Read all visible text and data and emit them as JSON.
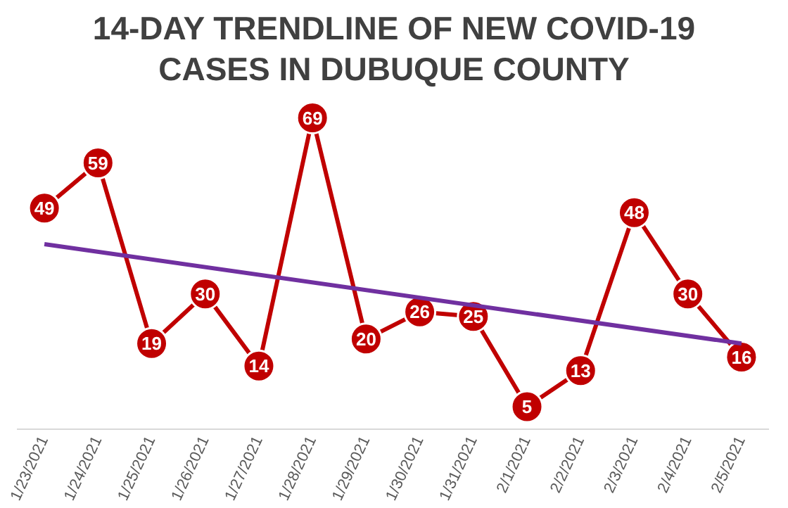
{
  "chart_data": {
    "type": "line",
    "title": "14-DAY TRENDLINE OF NEW COVID-19 CASES IN DUBUQUE COUNTY",
    "categories": [
      "1/23/2021",
      "1/24/2021",
      "1/25/2021",
      "1/26/2021",
      "1/27/2021",
      "1/28/2021",
      "1/29/2021",
      "1/30/2021",
      "1/31/2021",
      "2/1/2021",
      "2/2/2021",
      "2/3/2021",
      "2/4/2021",
      "2/5/2021"
    ],
    "series": [
      {
        "color": "#c00000",
        "marker": "circle",
        "values": [
          49,
          59,
          19,
          30,
          14,
          69,
          20,
          26,
          25,
          5,
          13,
          48,
          30,
          16
        ],
        "value_labels": [
          "49",
          "59",
          "19",
          "30",
          "14",
          "69",
          "20",
          "26",
          "25",
          "5",
          "13",
          "48",
          "30",
          "16"
        ]
      },
      {
        "color": "#7030a0",
        "marker": "none",
        "x": [
          "1/23/2021",
          "2/5/2021"
        ],
        "values": [
          41,
          19
        ]
      }
    ],
    "tick_labels": "x",
    "grid": false,
    "legend": false,
    "line_style": "solid"
  }
}
